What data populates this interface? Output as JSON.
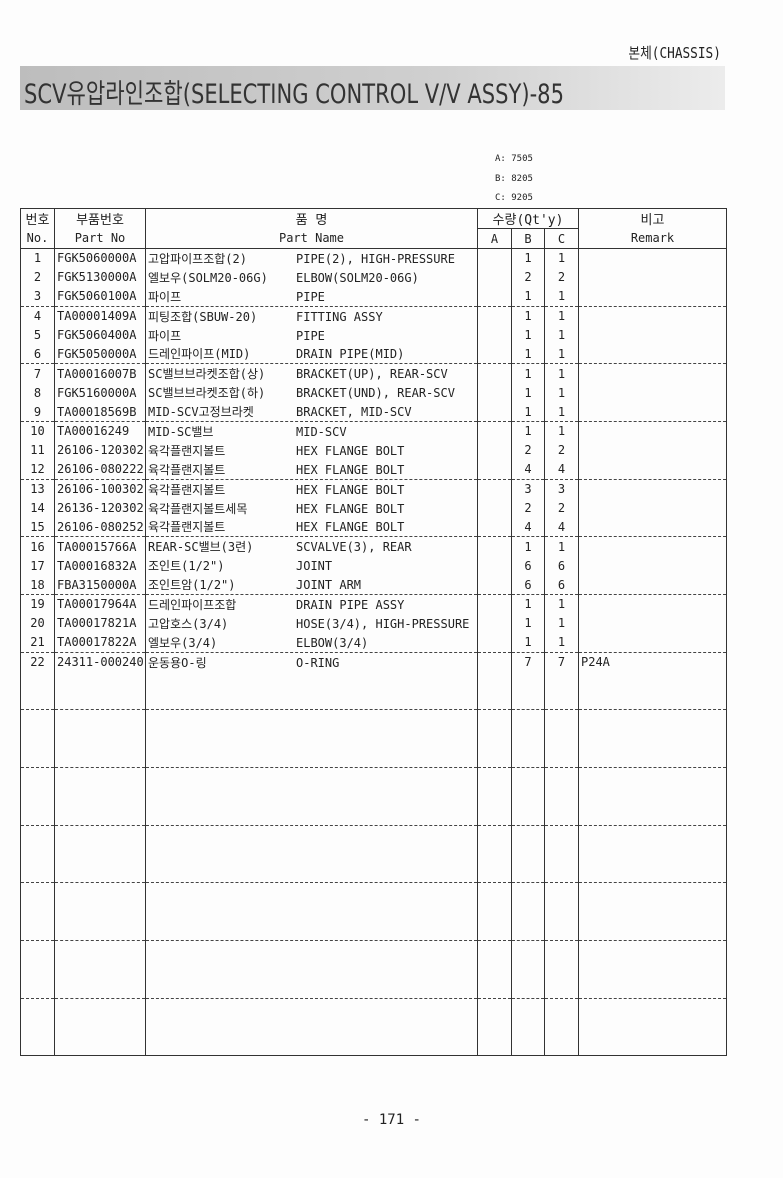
{
  "section": "본체(CHASSIS)",
  "title": "SCV유압라인조합(SELECTING CONTROL V/V ASSY)-85",
  "codes": [
    "A: 7505",
    "B: 8205",
    "C: 9205"
  ],
  "headers": {
    "no_ko": "번호",
    "no_en": "No.",
    "part_ko": "부품번호",
    "part_en": "Part No",
    "name_ko": "품 명",
    "name_en": "Part Name",
    "qty": "수량(Qt'y)",
    "a": "A",
    "b": "B",
    "c": "C",
    "remark_ko": "비고",
    "remark_en": "Remark"
  },
  "rows": [
    {
      "no": "1",
      "part": "FGK5060000A",
      "ko": "고압파이프조합(2)",
      "en": "PIPE(2), HIGH-PRESSURE",
      "a": "",
      "b": "1",
      "c": "1",
      "remark": ""
    },
    {
      "no": "2",
      "part": "FGK5130000A",
      "ko": "엘보우(SOLM20-06G)",
      "en": "ELBOW(SOLM20-06G)",
      "a": "",
      "b": "2",
      "c": "2",
      "remark": ""
    },
    {
      "no": "3",
      "part": "FGK5060100A",
      "ko": "파이프",
      "en": "PIPE",
      "a": "",
      "b": "1",
      "c": "1",
      "remark": ""
    },
    {
      "no": "4",
      "part": "TA00001409A",
      "ko": "피팅조합(SBUW-20)",
      "en": "FITTING ASSY",
      "a": "",
      "b": "1",
      "c": "1",
      "remark": ""
    },
    {
      "no": "5",
      "part": "FGK5060400A",
      "ko": "파이프",
      "en": "PIPE",
      "a": "",
      "b": "1",
      "c": "1",
      "remark": ""
    },
    {
      "no": "6",
      "part": "FGK5050000A",
      "ko": "드레인파이프(MID)",
      "en": "DRAIN PIPE(MID)",
      "a": "",
      "b": "1",
      "c": "1",
      "remark": ""
    },
    {
      "no": "7",
      "part": "TA00016007B",
      "ko": "SC밸브브라켓조합(상)",
      "en": "BRACKET(UP), REAR-SCV",
      "a": "",
      "b": "1",
      "c": "1",
      "remark": ""
    },
    {
      "no": "8",
      "part": "FGK5160000A",
      "ko": "SC밸브브라켓조합(하)",
      "en": "BRACKET(UND), REAR-SCV",
      "a": "",
      "b": "1",
      "c": "1",
      "remark": ""
    },
    {
      "no": "9",
      "part": "TA00018569B",
      "ko": "MID-SCV고정브라켓",
      "en": "BRACKET, MID-SCV",
      "a": "",
      "b": "1",
      "c": "1",
      "remark": ""
    },
    {
      "no": "10",
      "part": "TA00016249",
      "ko": "MID-SC밸브",
      "en": "MID-SCV",
      "a": "",
      "b": "1",
      "c": "1",
      "remark": ""
    },
    {
      "no": "11",
      "part": "26106-120302",
      "ko": "육각플랜지볼트",
      "en": "HEX FLANGE BOLT",
      "a": "",
      "b": "2",
      "c": "2",
      "remark": ""
    },
    {
      "no": "12",
      "part": "26106-080222",
      "ko": "육각플랜지볼트",
      "en": "HEX FLANGE BOLT",
      "a": "",
      "b": "4",
      "c": "4",
      "remark": ""
    },
    {
      "no": "13",
      "part": "26106-100302",
      "ko": "육각플랜지볼트",
      "en": "HEX FLANGE BOLT",
      "a": "",
      "b": "3",
      "c": "3",
      "remark": ""
    },
    {
      "no": "14",
      "part": "26136-120302",
      "ko": "육각플랜지볼트세목",
      "en": "HEX FLANGE BOLT",
      "a": "",
      "b": "2",
      "c": "2",
      "remark": ""
    },
    {
      "no": "15",
      "part": "26106-080252",
      "ko": "육각플랜지볼트",
      "en": "HEX FLANGE BOLT",
      "a": "",
      "b": "4",
      "c": "4",
      "remark": ""
    },
    {
      "no": "16",
      "part": "TA00015766A",
      "ko": "REAR-SC밸브(3련)",
      "en": "SCVALVE(3), REAR",
      "a": "",
      "b": "1",
      "c": "1",
      "remark": ""
    },
    {
      "no": "17",
      "part": "TA00016832A",
      "ko": "조인트(1/2\")",
      "en": "JOINT",
      "a": "",
      "b": "6",
      "c": "6",
      "remark": ""
    },
    {
      "no": "18",
      "part": "FBA3150000A",
      "ko": "조인트암(1/2\")",
      "en": "JOINT ARM",
      "a": "",
      "b": "6",
      "c": "6",
      "remark": ""
    },
    {
      "no": "19",
      "part": "TA00017964A",
      "ko": "드레인파이프조합",
      "en": "DRAIN PIPE ASSY",
      "a": "",
      "b": "1",
      "c": "1",
      "remark": ""
    },
    {
      "no": "20",
      "part": "TA00017821A",
      "ko": "고압호스(3/4)",
      "en": "HOSE(3/4), HIGH-PRESSURE",
      "a": "",
      "b": "1",
      "c": "1",
      "remark": ""
    },
    {
      "no": "21",
      "part": "TA00017822A",
      "ko": "엘보우(3/4)",
      "en": "ELBOW(3/4)",
      "a": "",
      "b": "1",
      "c": "1",
      "remark": ""
    },
    {
      "no": "22",
      "part": "24311-000240",
      "ko": "운동용O-링",
      "en": "O-RING",
      "a": "",
      "b": "7",
      "c": "7",
      "remark": "P24A"
    }
  ],
  "page_number": "- 171 -"
}
